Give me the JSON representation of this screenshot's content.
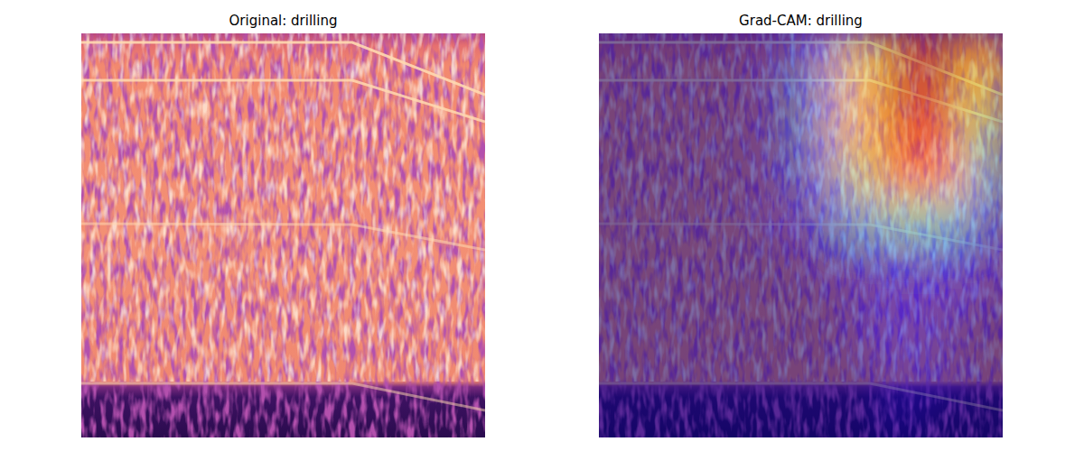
{
  "chart_data": [
    {
      "type": "image",
      "title": "Original: drilling",
      "tick_labels": false
    },
    {
      "type": "heatmap",
      "title": "Grad-CAM: drilling",
      "tick_labels": false,
      "value_range": [
        0,
        1
      ],
      "cells": [
        [
          0,
          0,
          0,
          0,
          0.05,
          0.2,
          0.6,
          0.95,
          1,
          0.7
        ],
        [
          0,
          0,
          0,
          0,
          0.05,
          0.25,
          0.65,
          0.95,
          0.95,
          0.6
        ],
        [
          0,
          0,
          0,
          0,
          0.05,
          0.25,
          0.65,
          0.9,
          0.9,
          0.5
        ],
        [
          0,
          0,
          0,
          0,
          0.05,
          0.2,
          0.55,
          0.8,
          0.75,
          0.35
        ],
        [
          0,
          0,
          0,
          0,
          0.05,
          0.1,
          0.3,
          0.45,
          0.4,
          0.2
        ],
        [
          0,
          0,
          0,
          0,
          0,
          0.05,
          0.1,
          0.15,
          0.15,
          0.1
        ],
        [
          0,
          0,
          0,
          0,
          0,
          0,
          0.05,
          0.1,
          0.1,
          0.05
        ],
        [
          0,
          0,
          0,
          0,
          0,
          0,
          0.05,
          0.1,
          0.05,
          0
        ],
        [
          0,
          0,
          0,
          0,
          0,
          0,
          0,
          0.05,
          0.05,
          0
        ],
        [
          0,
          0,
          0,
          0,
          0,
          0,
          0,
          0.05,
          0,
          0
        ]
      ]
    }
  ]
}
